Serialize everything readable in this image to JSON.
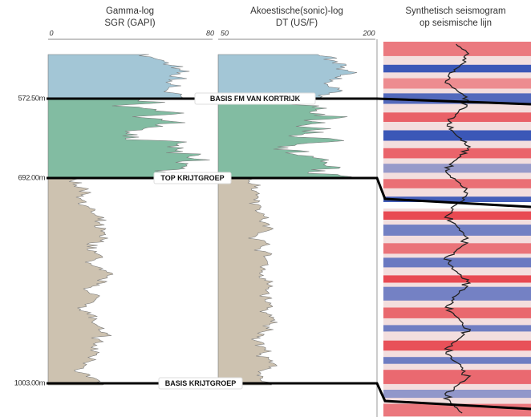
{
  "header": {
    "gamma": {
      "title": "Gamma-log",
      "unit": "SGR (GAPI)",
      "min": "0",
      "max": "80"
    },
    "sonic": {
      "title": "Akoestische(sonic)-log",
      "unit": "DT (US/F)",
      "min": "50",
      "max": "200"
    },
    "seismic": {
      "title": "Synthetisch seismogram",
      "subtitle": "op seismische lijn"
    }
  },
  "horizons": [
    {
      "depth": "572.50m",
      "label": "BASIS FM VAN KORTRIJK"
    },
    {
      "depth": "692.00m",
      "label": "TOP KRIJTGROEP"
    },
    {
      "depth": "1003.00m",
      "label": "BASIS KRIJTGROEP"
    }
  ]
}
